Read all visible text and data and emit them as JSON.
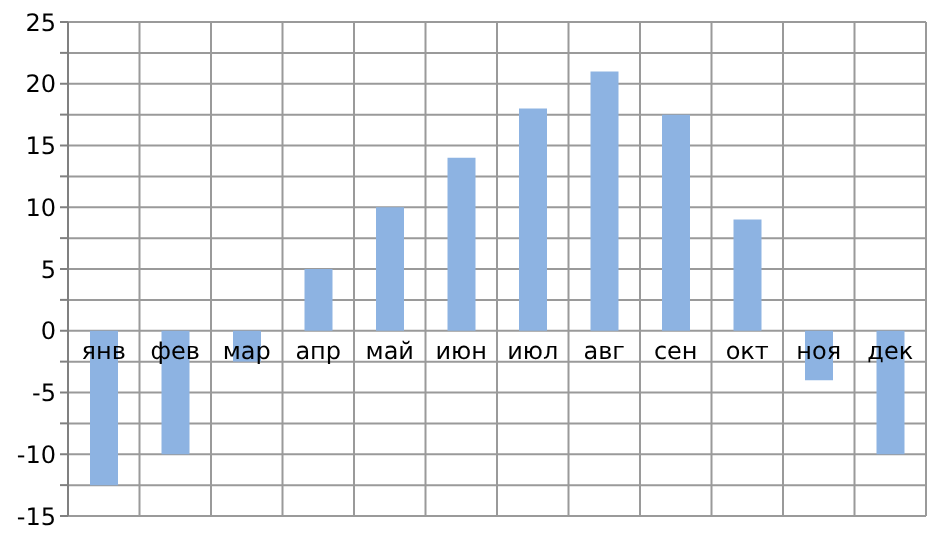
{
  "chart_data": {
    "type": "bar",
    "categories": [
      "янв",
      "фев",
      "мар",
      "апр",
      "май",
      "июн",
      "июл",
      "авг",
      "сен",
      "окт",
      "ноя",
      "дек"
    ],
    "values": [
      -12.5,
      -10,
      -2.5,
      5,
      10,
      14,
      18,
      21,
      17.5,
      9,
      -4,
      -10
    ],
    "color": "#8db3e2",
    "ylim": [
      -15,
      25
    ],
    "yticks": [
      -15,
      {
        "value": -12.5,
        "label": null
      },
      -10,
      {
        "value": -7.5,
        "label": null
      },
      -5,
      {
        "value": -2.5,
        "label": null
      },
      0,
      {
        "value": 2.5,
        "label": null
      },
      5,
      {
        "value": 7.5,
        "label": null
      },
      10,
      {
        "value": 12.5,
        "label": null
      },
      15,
      {
        "value": 17.5,
        "label": null
      },
      20,
      {
        "value": 22.5,
        "label": null
      },
      25
    ],
    "grid": true
  }
}
